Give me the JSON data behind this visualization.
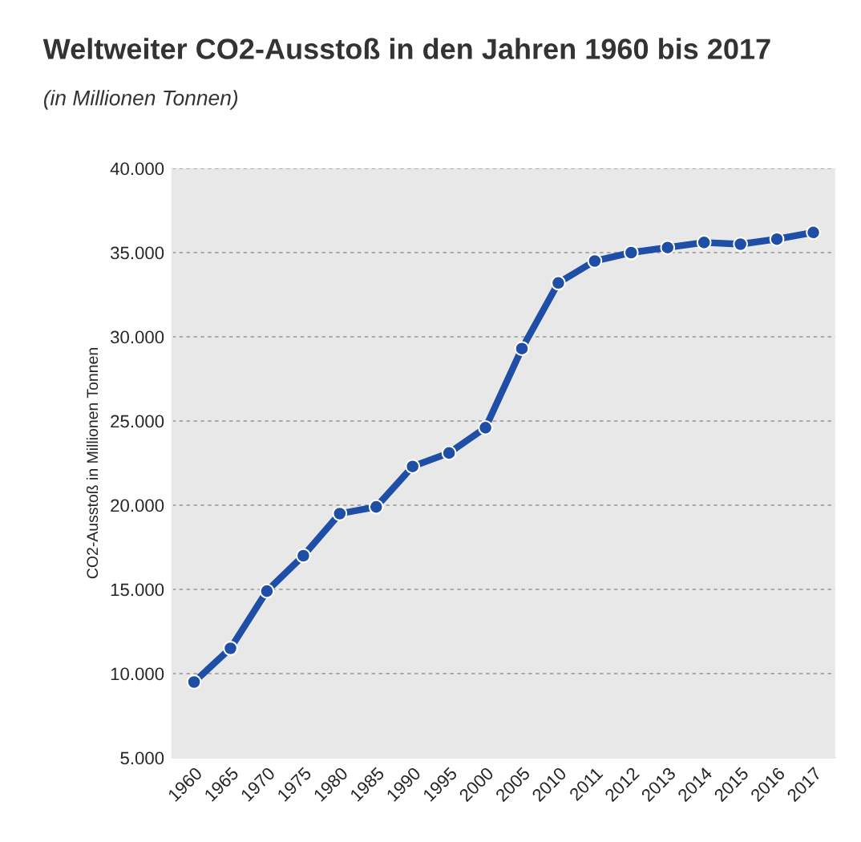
{
  "chart_data": {
    "type": "line",
    "title": "Weltweiter CO2-Ausstoß in den Jahren 1960 bis 2017",
    "subtitle": "(in Millionen Tonnen)",
    "ylabel": "CO2-Ausstoß in Millionen Tonnen",
    "categories": [
      "1960",
      "1965",
      "1970",
      "1975",
      "1980",
      "1985",
      "1990",
      "1995",
      "2000",
      "2005",
      "2010",
      "2011",
      "2012",
      "2013",
      "2014",
      "2015",
      "2016",
      "2017"
    ],
    "series": [
      {
        "color": "#1f4ea6",
        "values": [
          9500,
          11500,
          14900,
          17000,
          19500,
          19900,
          22300,
          23100,
          24600,
          29300,
          33200,
          34500,
          35000,
          35300,
          35600,
          35500,
          35800,
          36200
        ]
      }
    ],
    "ylim": [
      5000,
      40000
    ],
    "yticks": [
      {
        "value": 5000,
        "label": "5.000"
      },
      {
        "value": 10000,
        "label": "10.000"
      },
      {
        "value": 15000,
        "label": "15.000"
      },
      {
        "value": 20000,
        "label": "20.000"
      },
      {
        "value": 25000,
        "label": "25.000"
      },
      {
        "value": 30000,
        "label": "30.000"
      },
      {
        "value": 35000,
        "label": "35.000"
      },
      {
        "value": 40000,
        "label": "40.000"
      }
    ],
    "grid": "y",
    "marker": "circle",
    "line_style": "solid"
  }
}
